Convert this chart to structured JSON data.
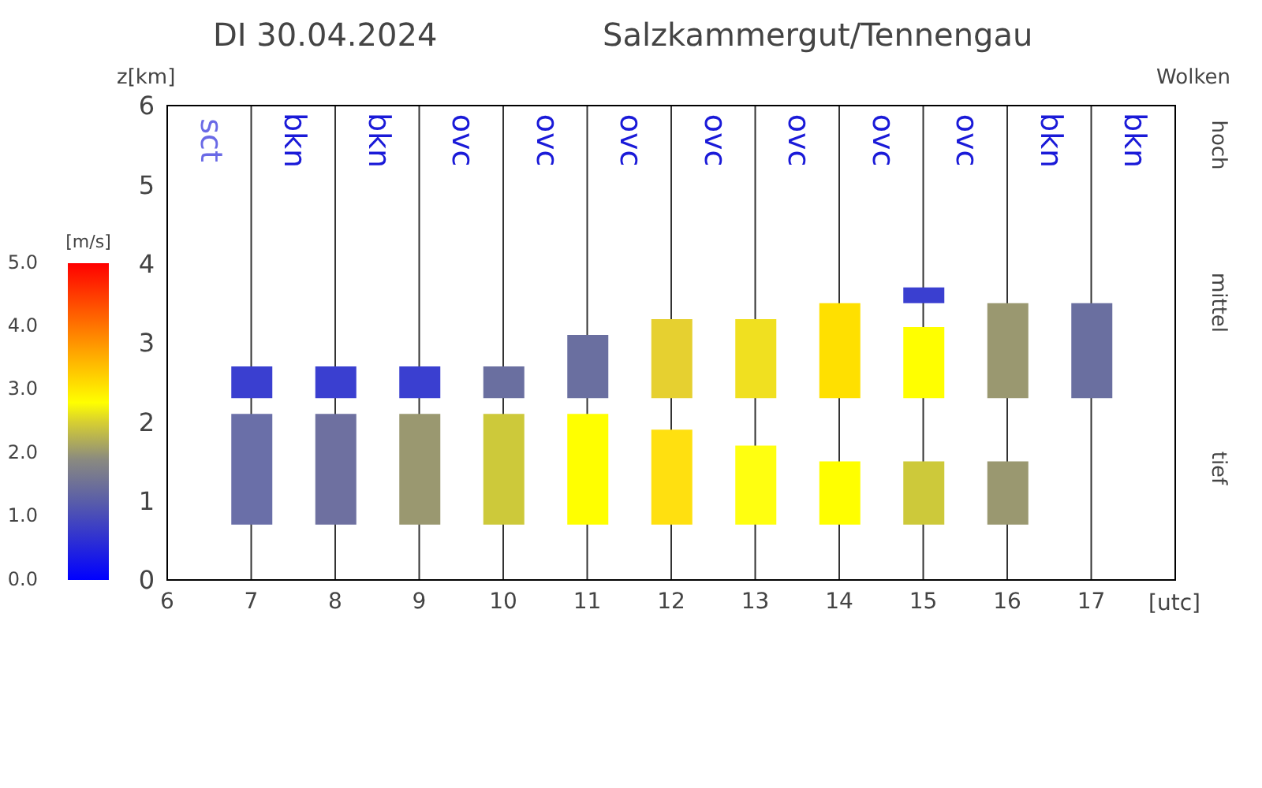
{
  "chart_data": {
    "type": "bar",
    "title": "DI 30.04.2024",
    "subtitle": "Salzkammergut/Tennengau",
    "ylabel": "z[km]",
    "xlabel": "[utc]",
    "y2label": "Wolken",
    "clabel": "[m/s]",
    "clim": [
      0,
      5
    ],
    "cticks": [
      {
        "value": 0,
        "label": "0.0"
      },
      {
        "value": 1,
        "label": "1.0"
      },
      {
        "value": 2,
        "label": "2.0"
      },
      {
        "value": 3,
        "label": "3.0"
      },
      {
        "value": 4,
        "label": "4.0"
      },
      {
        "value": 5,
        "label": "5.0"
      }
    ],
    "x": [
      7,
      8,
      9,
      10,
      11,
      12,
      13,
      14,
      15,
      16,
      17
    ],
    "series": [
      {
        "values": [
          1.4,
          1.4,
          1.4,
          1.4,
          1.4,
          1.2,
          1.0,
          0.8,
          0.8,
          0.8,
          null
        ],
        "base": [
          0.7,
          0.7,
          0.7,
          0.7,
          0.7,
          0.7,
          0.7,
          0.7,
          0.7,
          0.7,
          null
        ],
        "colors": [
          "#6a6fa8",
          "#6e70a0",
          "#9a9870",
          "#cdc93a",
          "#ffff00",
          "#ffe010",
          "#ffff10",
          "#ffff00",
          "#cdc93a",
          "#9a9870",
          "#ffffff"
        ]
      },
      {
        "values": [
          0.4,
          0.4,
          0.4,
          0.4,
          0.8,
          1.0,
          1.0,
          1.2,
          0.9,
          1.2,
          1.2
        ],
        "base": [
          2.3,
          2.3,
          2.3,
          2.3,
          2.3,
          2.3,
          2.3,
          2.3,
          2.3,
          2.3,
          2.3
        ],
        "colors": [
          "#3a3fd0",
          "#3a3fd0",
          "#3a3fd0",
          "#6a6fa0",
          "#6a6fa0",
          "#e6d030",
          "#f0e020",
          "#ffe000",
          "#ffff00",
          "#9a9870",
          "#6a6fa0"
        ]
      },
      {
        "values": [
          null,
          null,
          null,
          null,
          null,
          null,
          null,
          null,
          0.2,
          null,
          null
        ],
        "base": [
          null,
          null,
          null,
          null,
          null,
          null,
          null,
          null,
          3.5,
          null,
          null
        ],
        "colors": [
          "#3a3fd0",
          "#3a3fd0",
          "#3a3fd0",
          "#3a3fd0",
          "#3a3fd0",
          "#3a3fd0",
          "#3a3fd0",
          "#3a3fd0",
          "#3a3fd0",
          "#3a3fd0",
          "#3a3fd0"
        ]
      }
    ],
    "xlim": [
      6,
      18
    ],
    "xticks": [
      6,
      7,
      8,
      9,
      10,
      11,
      12,
      13,
      14,
      15,
      16,
      17
    ],
    "ylim": [
      0,
      6
    ],
    "yticks": [
      0,
      1,
      2,
      3,
      4,
      5,
      6
    ],
    "grid": true,
    "annotations": [
      "sct",
      "bkn",
      "bkn",
      "ovc",
      "ovc",
      "ovc",
      "ovc",
      "ovc",
      "ovc",
      "ovc",
      "bkn",
      "bkn",
      "hoch",
      "mittel",
      "tief"
    ]
  }
}
